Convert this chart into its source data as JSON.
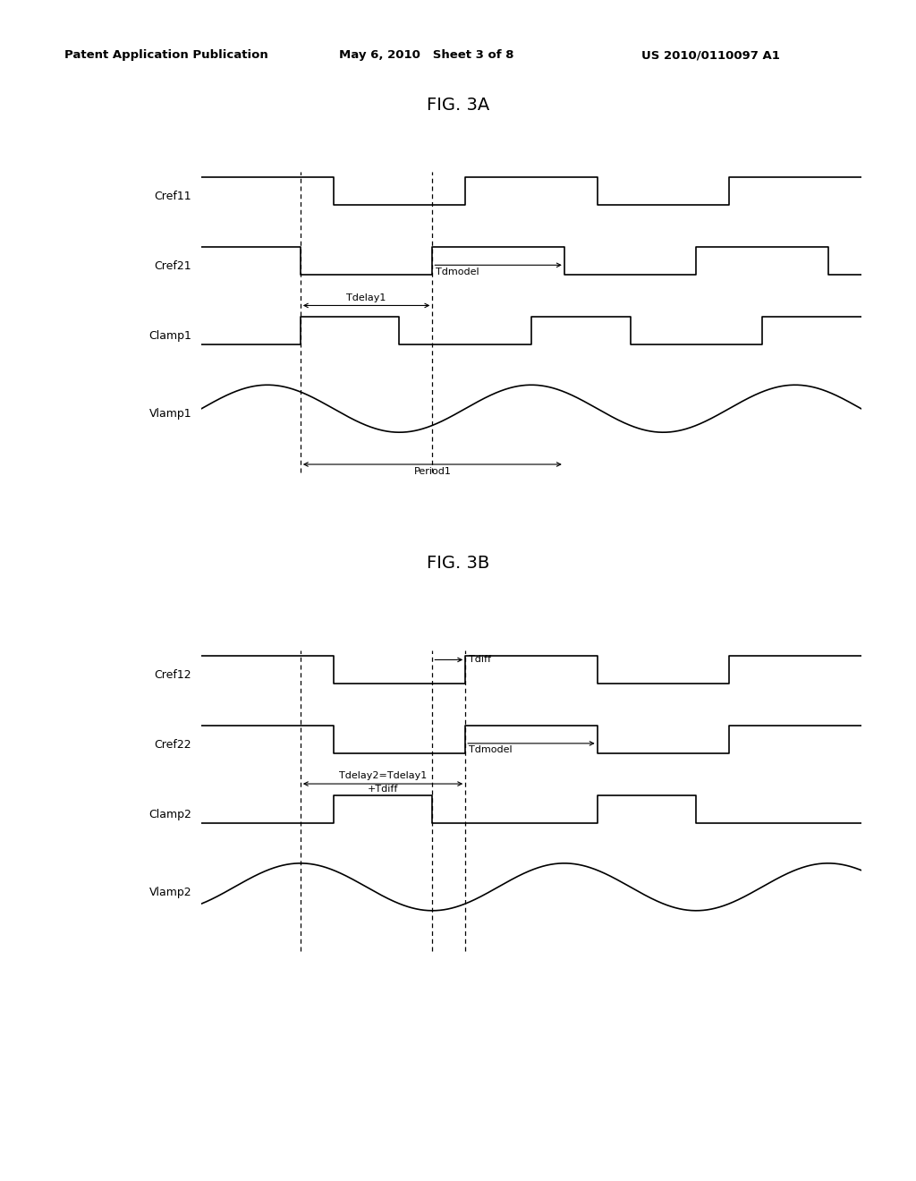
{
  "title_3a": "FIG. 3A",
  "title_3b": "FIG. 3B",
  "header_left": "Patent Application Publication",
  "header_mid": "May 6, 2010   Sheet 3 of 8",
  "header_right": "US 2010/0110097 A1",
  "bg_color": "#ffffff",
  "line_color": "#000000",
  "lw": 1.2,
  "lw_dash": 0.9,
  "font_size_header": 9.5,
  "font_size_title": 14,
  "font_size_label": 9,
  "font_size_annot": 8
}
